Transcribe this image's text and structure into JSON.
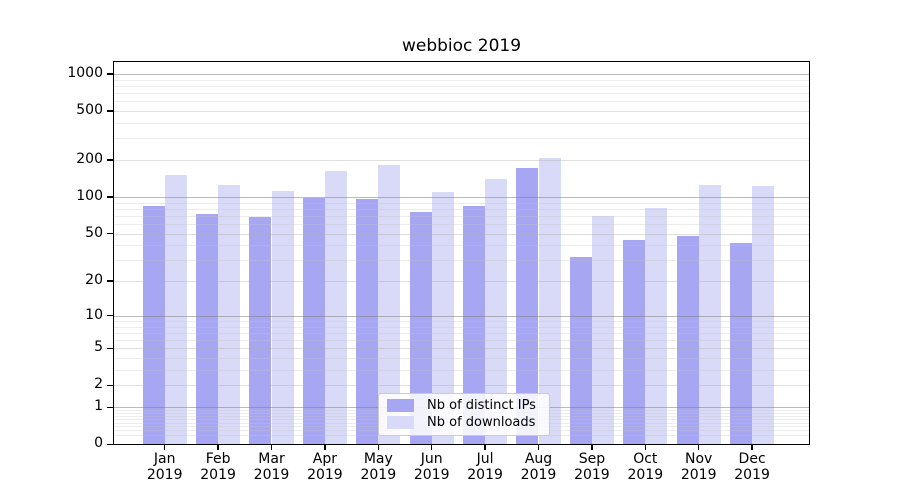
{
  "chart_data": {
    "type": "bar",
    "title": "webbioc 2019",
    "categories": [
      "Jan",
      "Feb",
      "Mar",
      "Apr",
      "May",
      "Jun",
      "Jul",
      "Aug",
      "Sep",
      "Oct",
      "Nov",
      "Dec"
    ],
    "x_tick_year": "2019",
    "series": [
      {
        "name": "Nb of distinct IPs",
        "color": "#a6a6f2",
        "values": [
          84,
          72,
          69,
          98,
          96,
          76,
          84,
          173,
          32,
          44,
          48,
          42
        ]
      },
      {
        "name": "Nb of downloads",
        "color": "#d9d9f8",
        "values": [
          152,
          125,
          111,
          163,
          181,
          110,
          140,
          208,
          70,
          81,
          126,
          124
        ]
      }
    ],
    "yscale": "log1p",
    "ylim": [
      0,
      1276
    ],
    "y_ticks": [
      0,
      1,
      2,
      5,
      10,
      20,
      50,
      100,
      200,
      500,
      1000
    ],
    "y_power_ticks": [
      1,
      10,
      100,
      1000
    ],
    "y_minor_ticks": [
      0.2,
      0.3,
      0.4,
      0.5,
      0.6,
      0.7,
      0.8,
      0.9,
      3,
      4,
      6,
      7,
      8,
      9,
      30,
      40,
      60,
      70,
      80,
      90,
      300,
      400,
      600,
      700,
      800,
      900
    ],
    "grid": "on",
    "legend_position": "lower center"
  },
  "colors": {
    "background": "#ffffff",
    "axis": "#000000",
    "major_grid": "#b0b0b0",
    "minor_grid": "#e9e9e9",
    "bar_ips": "#a6a6f2",
    "bar_downloads": "#d9d9f8"
  }
}
